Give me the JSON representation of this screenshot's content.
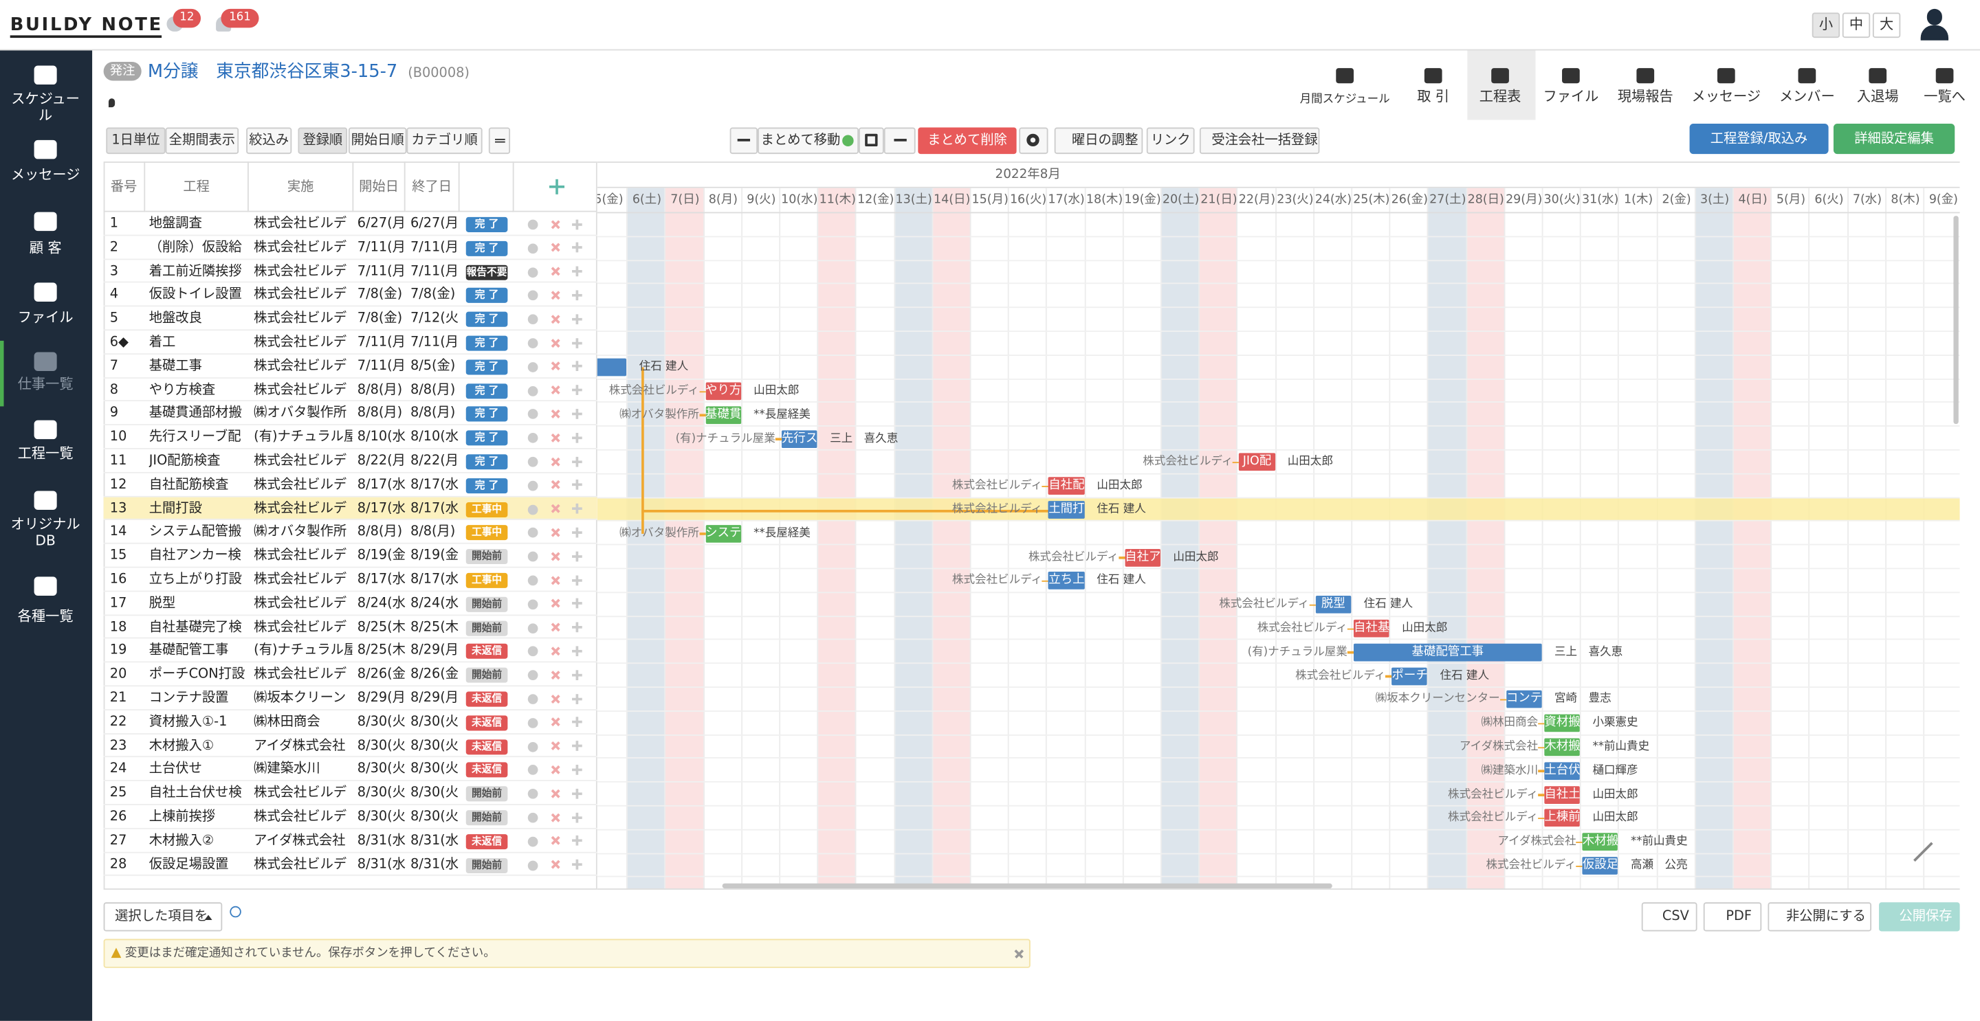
{
  "header": {
    "logo": "BUILDY NOTE",
    "chat_count": "12",
    "bell_count": "161",
    "sizes": [
      "小",
      "中",
      "大"
    ]
  },
  "sidebar": [
    "スケジュール",
    "メッセージ",
    "顧 客",
    "ファイル",
    "仕事一覧",
    "工程一覧",
    "オリジナルDB",
    "各種一覧"
  ],
  "project": {
    "tag": "発注",
    "name": "M分譲　東京都渋谷区東3-15-7",
    "code": "(B00008)"
  },
  "tabs": [
    "月間スケジュール",
    "取 引",
    "工程表",
    "ファイル",
    "現場報告",
    "メッセージ",
    "メンバー",
    "入退場",
    "一覧へ"
  ],
  "toolbar": {
    "left": [
      "1日単位",
      "全期間表示",
      "絞込み",
      "登録順",
      "開始日順",
      "カテゴリ順"
    ],
    "move": "まとめて移動",
    "delete": "まとめて削除",
    "weekday": "曜日の調整",
    "link": "リンク",
    "bulk": "受注会社一括登録",
    "register": "工程登録/取込み",
    "settings": "詳細設定編集"
  },
  "table": {
    "columns": [
      "番号",
      "工程",
      "実施",
      "開始日",
      "終了日"
    ],
    "statuses": [
      {
        "label": "完 了",
        "color": "#3d86c6"
      },
      {
        "label": "報告不要",
        "color": "#333333"
      },
      {
        "label": "工事中",
        "color": "#f0ad1e"
      },
      {
        "label": "開始前",
        "color": "#d9d9d9"
      },
      {
        "label": "未返信",
        "color": "#e05555"
      }
    ],
    "rows": [
      {
        "no": "1",
        "name": "地盤調査",
        "company": "株式会社ビルデ",
        "start": "6/27(月)",
        "end": "6/27(月)",
        "status": 0
      },
      {
        "no": "2",
        "name": "（削除）仮設給",
        "company": "株式会社ビルデ",
        "start": "7/11(月)",
        "end": "7/11(月)",
        "status": 0
      },
      {
        "no": "3",
        "name": "着工前近隣挨拶",
        "company": "株式会社ビルデ",
        "start": "7/11(月)",
        "end": "7/11(月)",
        "status": 1
      },
      {
        "no": "4",
        "name": "仮設トイレ設置",
        "company": "株式会社ビルデ",
        "start": "7/8(金)",
        "end": "7/8(金)",
        "status": 0
      },
      {
        "no": "5",
        "name": "地盤改良",
        "company": "株式会社ビルデ",
        "start": "7/8(金)",
        "end": "7/12(火)",
        "status": 0
      },
      {
        "no": "6◆",
        "name": "着工",
        "company": "株式会社ビルデ",
        "start": "7/11(月)",
        "end": "7/11(月)",
        "status": 0
      },
      {
        "no": "7",
        "name": "基礎工事",
        "company": "株式会社ビルデ",
        "start": "7/11(月)",
        "end": "8/5(金)",
        "status": 0
      },
      {
        "no": "8",
        "name": "やり方検査",
        "company": "株式会社ビルデ",
        "start": "8/8(月)",
        "end": "8/8(月)",
        "status": 0
      },
      {
        "no": "9",
        "name": "基礎貫通部材搬",
        "company": "㈱オバタ製作所",
        "start": "8/8(月)",
        "end": "8/8(月)",
        "status": 0
      },
      {
        "no": "10",
        "name": "先行スリーブ配",
        "company": "(有)ナチュラル屋",
        "start": "8/10(水)",
        "end": "8/10(水)",
        "status": 0
      },
      {
        "no": "11",
        "name": "JIO配筋検査",
        "company": "株式会社ビルデ",
        "start": "8/22(月)",
        "end": "8/22(月)",
        "status": 0
      },
      {
        "no": "12",
        "name": "自社配筋検査",
        "company": "株式会社ビルデ",
        "start": "8/17(水)",
        "end": "8/17(水)",
        "status": 0
      },
      {
        "no": "13",
        "name": "土間打設",
        "company": "株式会社ビルデ",
        "start": "8/17(水)",
        "end": "8/17(水)",
        "status": 2,
        "highlight": true
      },
      {
        "no": "14",
        "name": "システム配管搬",
        "company": "㈱オバタ製作所",
        "start": "8/8(月)",
        "end": "8/8(月)",
        "status": 2
      },
      {
        "no": "15",
        "name": "自社アンカー検",
        "company": "株式会社ビルデ",
        "start": "8/19(金)",
        "end": "8/19(金)",
        "status": 3
      },
      {
        "no": "16",
        "name": "立ち上がり打設",
        "company": "株式会社ビルデ",
        "start": "8/17(水)",
        "end": "8/17(水)",
        "status": 2
      },
      {
        "no": "17",
        "name": "脱型",
        "company": "株式会社ビルデ",
        "start": "8/24(水)",
        "end": "8/24(水)",
        "status": 3
      },
      {
        "no": "18",
        "name": "自社基礎完了検",
        "company": "株式会社ビルデ",
        "start": "8/25(木)",
        "end": "8/25(木)",
        "status": 3
      },
      {
        "no": "19",
        "name": "基礎配管工事",
        "company": "(有)ナチュラル屋",
        "start": "8/25(木)",
        "end": "8/29(月)",
        "status": 4
      },
      {
        "no": "20",
        "name": "ポーチCON打設",
        "company": "株式会社ビルデ",
        "start": "8/26(金)",
        "end": "8/26(金)",
        "status": 3
      },
      {
        "no": "21",
        "name": "コンテナ設置",
        "company": "㈱坂本クリーン",
        "start": "8/29(月)",
        "end": "8/29(月)",
        "status": 4
      },
      {
        "no": "22",
        "name": "資材搬入①-1",
        "company": "㈱林田商会",
        "start": "8/30(火)",
        "end": "8/30(火)",
        "status": 4
      },
      {
        "no": "23",
        "name": "木材搬入①",
        "company": "アイダ株式会社",
        "start": "8/30(火)",
        "end": "8/30(火)",
        "status": 4
      },
      {
        "no": "24",
        "name": "土台伏せ",
        "company": "㈱建築水川",
        "start": "8/30(火)",
        "end": "8/30(火)",
        "status": 4
      },
      {
        "no": "25",
        "name": "自社土台伏せ検",
        "company": "株式会社ビルデ",
        "start": "8/30(火)",
        "end": "8/30(火)",
        "status": 3
      },
      {
        "no": "26",
        "name": "上棟前挨拶",
        "company": "株式会社ビルデ",
        "start": "8/30(火)",
        "end": "8/30(火)",
        "status": 3
      },
      {
        "no": "27",
        "name": "木材搬入②",
        "company": "アイダ株式会社",
        "start": "8/31(水)",
        "end": "8/31(水)",
        "status": 4
      },
      {
        "no": "28",
        "name": "仮設足場設置",
        "company": "株式会社ビルデ",
        "start": "8/31(水)",
        "end": "8/31(水)",
        "status": 3
      }
    ]
  },
  "gantt": {
    "month": "2022年8月",
    "shades": {
      "sat": "#dde5ec",
      "sun": "#fbe2e2"
    },
    "days": [
      {
        "label": "5(金)"
      },
      {
        "label": "6(土)",
        "shade": "sat"
      },
      {
        "label": "7(日)",
        "shade": "sun"
      },
      {
        "label": "8(月)"
      },
      {
        "label": "9(火)"
      },
      {
        "label": "10(水)"
      },
      {
        "label": "11(木)",
        "shade": "sun"
      },
      {
        "label": "12(金)"
      },
      {
        "label": "13(土)",
        "shade": "sat"
      },
      {
        "label": "14(日)",
        "shade": "sun"
      },
      {
        "label": "15(月)"
      },
      {
        "label": "16(火)"
      },
      {
        "label": "17(水)"
      },
      {
        "label": "18(木)"
      },
      {
        "label": "19(金)"
      },
      {
        "label": "20(土)",
        "shade": "sat"
      },
      {
        "label": "21(日)",
        "shade": "sun"
      },
      {
        "label": "22(月)"
      },
      {
        "label": "23(火)"
      },
      {
        "label": "24(水)"
      },
      {
        "label": "25(木)"
      },
      {
        "label": "26(金)"
      },
      {
        "label": "27(土)",
        "shade": "sat"
      },
      {
        "label": "28(日)",
        "shade": "sun"
      },
      {
        "label": "29(月)"
      },
      {
        "label": "30(火)"
      },
      {
        "label": "31(水)"
      },
      {
        "label": "1(木)"
      },
      {
        "label": "2(金)"
      },
      {
        "label": "3(土)",
        "shade": "sat"
      },
      {
        "label": "4(日)",
        "shade": "sun"
      },
      {
        "label": "5(月)"
      },
      {
        "label": "6(火)"
      },
      {
        "label": "7(水)"
      },
      {
        "label": "8(木)"
      },
      {
        "label": "9(金)"
      }
    ],
    "bars": [
      {
        "row": 7,
        "start": 0,
        "days": 1,
        "right": "住石 建人",
        "color": "#4a86c5"
      },
      {
        "row": 8,
        "start": 3,
        "days": 1,
        "label": "やり方",
        "left": "株式会社ビルディ",
        "right": "山田太郎",
        "color": "#e05a5a"
      },
      {
        "row": 9,
        "start": 3,
        "days": 1,
        "label": "基礎貫",
        "left": "㈱オバタ製作所",
        "right": "**長屋経美",
        "color": "#5cb85c"
      },
      {
        "row": 10,
        "start": 5,
        "days": 1,
        "label": "先行ス",
        "left": "(有)ナチュラル屋業",
        "right": "三上　喜久恵",
        "color": "#4a86c5"
      },
      {
        "row": 11,
        "start": 17,
        "days": 1,
        "label": "JIO配",
        "left": "株式会社ビルディ",
        "right": "山田太郎",
        "color": "#e05a5a"
      },
      {
        "row": 12,
        "start": 12,
        "days": 1,
        "label": "自社配",
        "left": "株式会社ビルディ",
        "right": "山田太郎",
        "color": "#e05a5a"
      },
      {
        "row": 13,
        "start": 12,
        "days": 1,
        "label": "土間打",
        "left": "株式会社ビルディ",
        "right": "住石 建人",
        "color": "#4a86c5"
      },
      {
        "row": 14,
        "start": 3,
        "days": 1,
        "label": "システ",
        "left": "㈱オバタ製作所",
        "right": "**長屋経美",
        "color": "#5cb85c"
      },
      {
        "row": 15,
        "start": 14,
        "days": 1,
        "label": "自社ア",
        "left": "株式会社ビルディ",
        "right": "山田太郎",
        "color": "#e05a5a"
      },
      {
        "row": 16,
        "start": 12,
        "days": 1,
        "label": "立ち上",
        "left": "株式会社ビルディ",
        "right": "住石 建人",
        "color": "#4a86c5"
      },
      {
        "row": 17,
        "start": 19,
        "days": 1,
        "label": "脱型",
        "left": "株式会社ビルディ",
        "right": "住石 建人",
        "color": "#4a86c5"
      },
      {
        "row": 18,
        "start": 20,
        "days": 1,
        "label": "自社基",
        "left": "株式会社ビルディ",
        "right": "山田太郎",
        "color": "#e05a5a"
      },
      {
        "row": 19,
        "start": 20,
        "days": 5,
        "label": "基礎配管工事",
        "left": "(有)ナチュラル屋業",
        "right": "三上　喜久恵",
        "color": "#4a86c5"
      },
      {
        "row": 20,
        "start": 21,
        "days": 1,
        "label": "ポーチ",
        "left": "株式会社ビルディ",
        "right": "住石 建人",
        "color": "#4a86c5"
      },
      {
        "row": 21,
        "start": 24,
        "days": 1,
        "label": "コンテ",
        "left": "㈱坂本クリーンセンター",
        "right": "宮崎　豊志",
        "color": "#4a86c5"
      },
      {
        "row": 22,
        "start": 25,
        "days": 1,
        "label": "資材搬",
        "left": "㈱林田商会",
        "right": "小栗憲史",
        "color": "#5cb85c"
      },
      {
        "row": 23,
        "start": 25,
        "days": 1,
        "label": "木材搬",
        "left": "アイダ株式会社",
        "right": "**前山貴史",
        "color": "#5cb85c"
      },
      {
        "row": 24,
        "start": 25,
        "days": 1,
        "label": "土台伏",
        "left": "㈱建築水川",
        "right": "樋口輝彦",
        "color": "#4a86c5"
      },
      {
        "row": 25,
        "start": 25,
        "days": 1,
        "label": "自社土",
        "left": "株式会社ビルディ",
        "right": "山田太郎",
        "color": "#e05a5a"
      },
      {
        "row": 26,
        "start": 25,
        "days": 1,
        "label": "上棟前",
        "left": "株式会社ビルディ",
        "right": "山田太郎",
        "color": "#e05a5a"
      },
      {
        "row": 27,
        "start": 26,
        "days": 1,
        "label": "木材搬",
        "left": "アイダ株式会社",
        "right": "**前山貴史",
        "color": "#5cb85c"
      },
      {
        "row": 28,
        "start": 26,
        "days": 1,
        "label": "仮設足",
        "left": "株式会社ビルディ",
        "right": "高瀬　公亮",
        "color": "#4a86c5"
      }
    ]
  },
  "footer": {
    "select": "選択した項目を",
    "csv": "CSV",
    "pdf": "PDF",
    "unpublish": "非公開にする",
    "publish": "公開保存",
    "notice": "変更はまだ確定通知されていません。保存ボタンを押してください。"
  }
}
